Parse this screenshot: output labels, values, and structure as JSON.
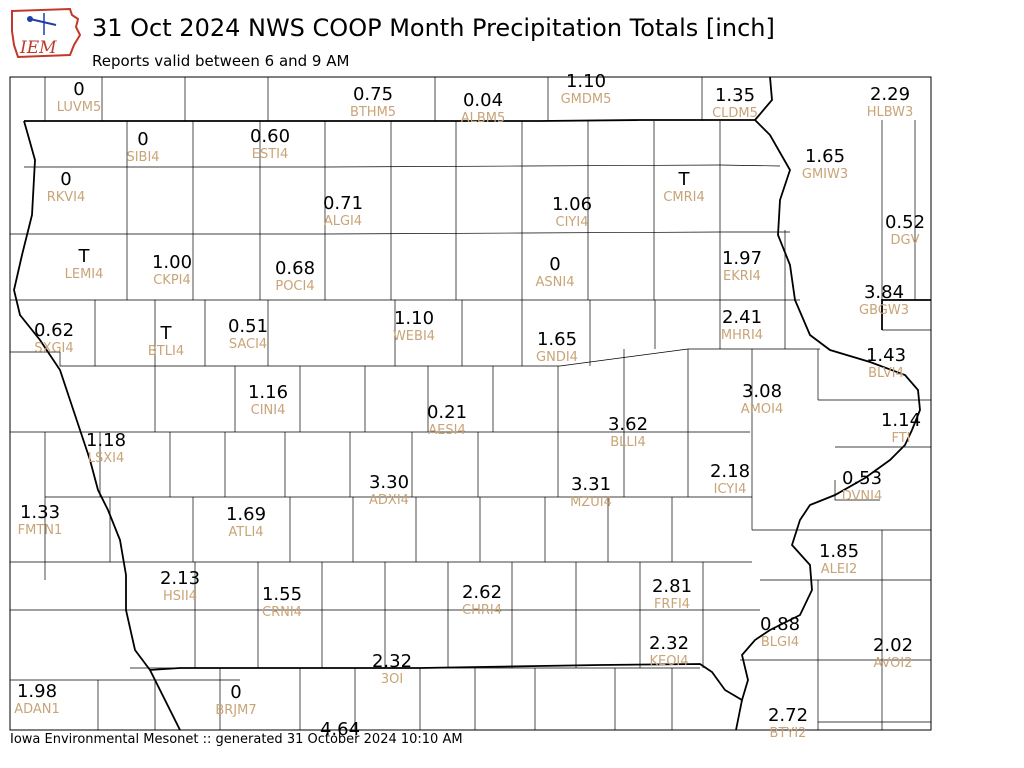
{
  "header": {
    "title": "31 Oct 2024 NWS COOP Month Precipitation Totals [inch]",
    "subtitle": "Reports valid between 6 and 9 AM"
  },
  "logo": {
    "text": "IEM"
  },
  "footer": {
    "text": "Iowa Environmental Mesonet :: generated 31 October 2024 10:10 AM"
  },
  "colors": {
    "value": "#000000",
    "station_id": "#c9a477",
    "border": "#000000",
    "logo_red": "#c0392b",
    "logo_blue": "#1f3fa6"
  },
  "stations": [
    {
      "id": "LUVM5",
      "value": "0"
    },
    {
      "id": "BTHM5",
      "value": "0.75"
    },
    {
      "id": "ALBM5",
      "value": "0.04"
    },
    {
      "id": "GMDM5",
      "value": "1.10"
    },
    {
      "id": "CLDM5",
      "value": "1.35"
    },
    {
      "id": "HLBW3",
      "value": "2.29"
    },
    {
      "id": "SIBI4",
      "value": "0"
    },
    {
      "id": "ESTI4",
      "value": "0.60"
    },
    {
      "id": "RKVI4",
      "value": "0"
    },
    {
      "id": "GMIW3",
      "value": "1.65"
    },
    {
      "id": "CMRI4",
      "value": "T"
    },
    {
      "id": "ALGI4",
      "value": "0.71"
    },
    {
      "id": "CIYI4",
      "value": "1.06"
    },
    {
      "id": "DGV",
      "value": "0.52"
    },
    {
      "id": "LEMI4",
      "value": "T"
    },
    {
      "id": "CKPI4",
      "value": "1.00"
    },
    {
      "id": "POCI4",
      "value": "0.68"
    },
    {
      "id": "ASNI4",
      "value": "0"
    },
    {
      "id": "EKRI4",
      "value": "1.97"
    },
    {
      "id": "GBGW3",
      "value": "3.84"
    },
    {
      "id": "SXGI4",
      "value": "0.62"
    },
    {
      "id": "BTLI4",
      "value": "T"
    },
    {
      "id": "SACI4",
      "value": "0.51"
    },
    {
      "id": "WEBI4",
      "value": "1.10"
    },
    {
      "id": "GNDI4",
      "value": "1.65"
    },
    {
      "id": "MHRI4",
      "value": "2.41"
    },
    {
      "id": "BLVI4",
      "value": "1.43"
    },
    {
      "id": "CINI4",
      "value": "1.16"
    },
    {
      "id": "AMOI4",
      "value": "3.08"
    },
    {
      "id": "AESI4",
      "value": "0.21"
    },
    {
      "id": "BLLI4",
      "value": "3.62"
    },
    {
      "id": "FTI",
      "value": "1.14"
    },
    {
      "id": "LSXI4",
      "value": "1.18"
    },
    {
      "id": "ICYI4",
      "value": "2.18"
    },
    {
      "id": "ADXI4",
      "value": "3.30"
    },
    {
      "id": "MZUI4",
      "value": "3.31"
    },
    {
      "id": "DVNI4",
      "value": "0.53"
    },
    {
      "id": "FMTN1",
      "value": "1.33"
    },
    {
      "id": "ATLI4",
      "value": "1.69"
    },
    {
      "id": "ALEI2",
      "value": "1.85"
    },
    {
      "id": "HSII4",
      "value": "2.13"
    },
    {
      "id": "CRNI4",
      "value": "1.55"
    },
    {
      "id": "CHRI4",
      "value": "2.62"
    },
    {
      "id": "FRFI4",
      "value": "2.81"
    },
    {
      "id": "BLGI4",
      "value": "0.88"
    },
    {
      "id": "KEOI4",
      "value": "2.32"
    },
    {
      "id": "AVOI2",
      "value": "2.02"
    },
    {
      "id": "3OI",
      "value": "2.32"
    },
    {
      "id": "ADAN1",
      "value": "1.98"
    },
    {
      "id": "BRJM7",
      "value": "0"
    },
    {
      "id": "BTYI2",
      "value": "2.72"
    },
    {
      "id": "",
      "value": "4.64"
    }
  ]
}
